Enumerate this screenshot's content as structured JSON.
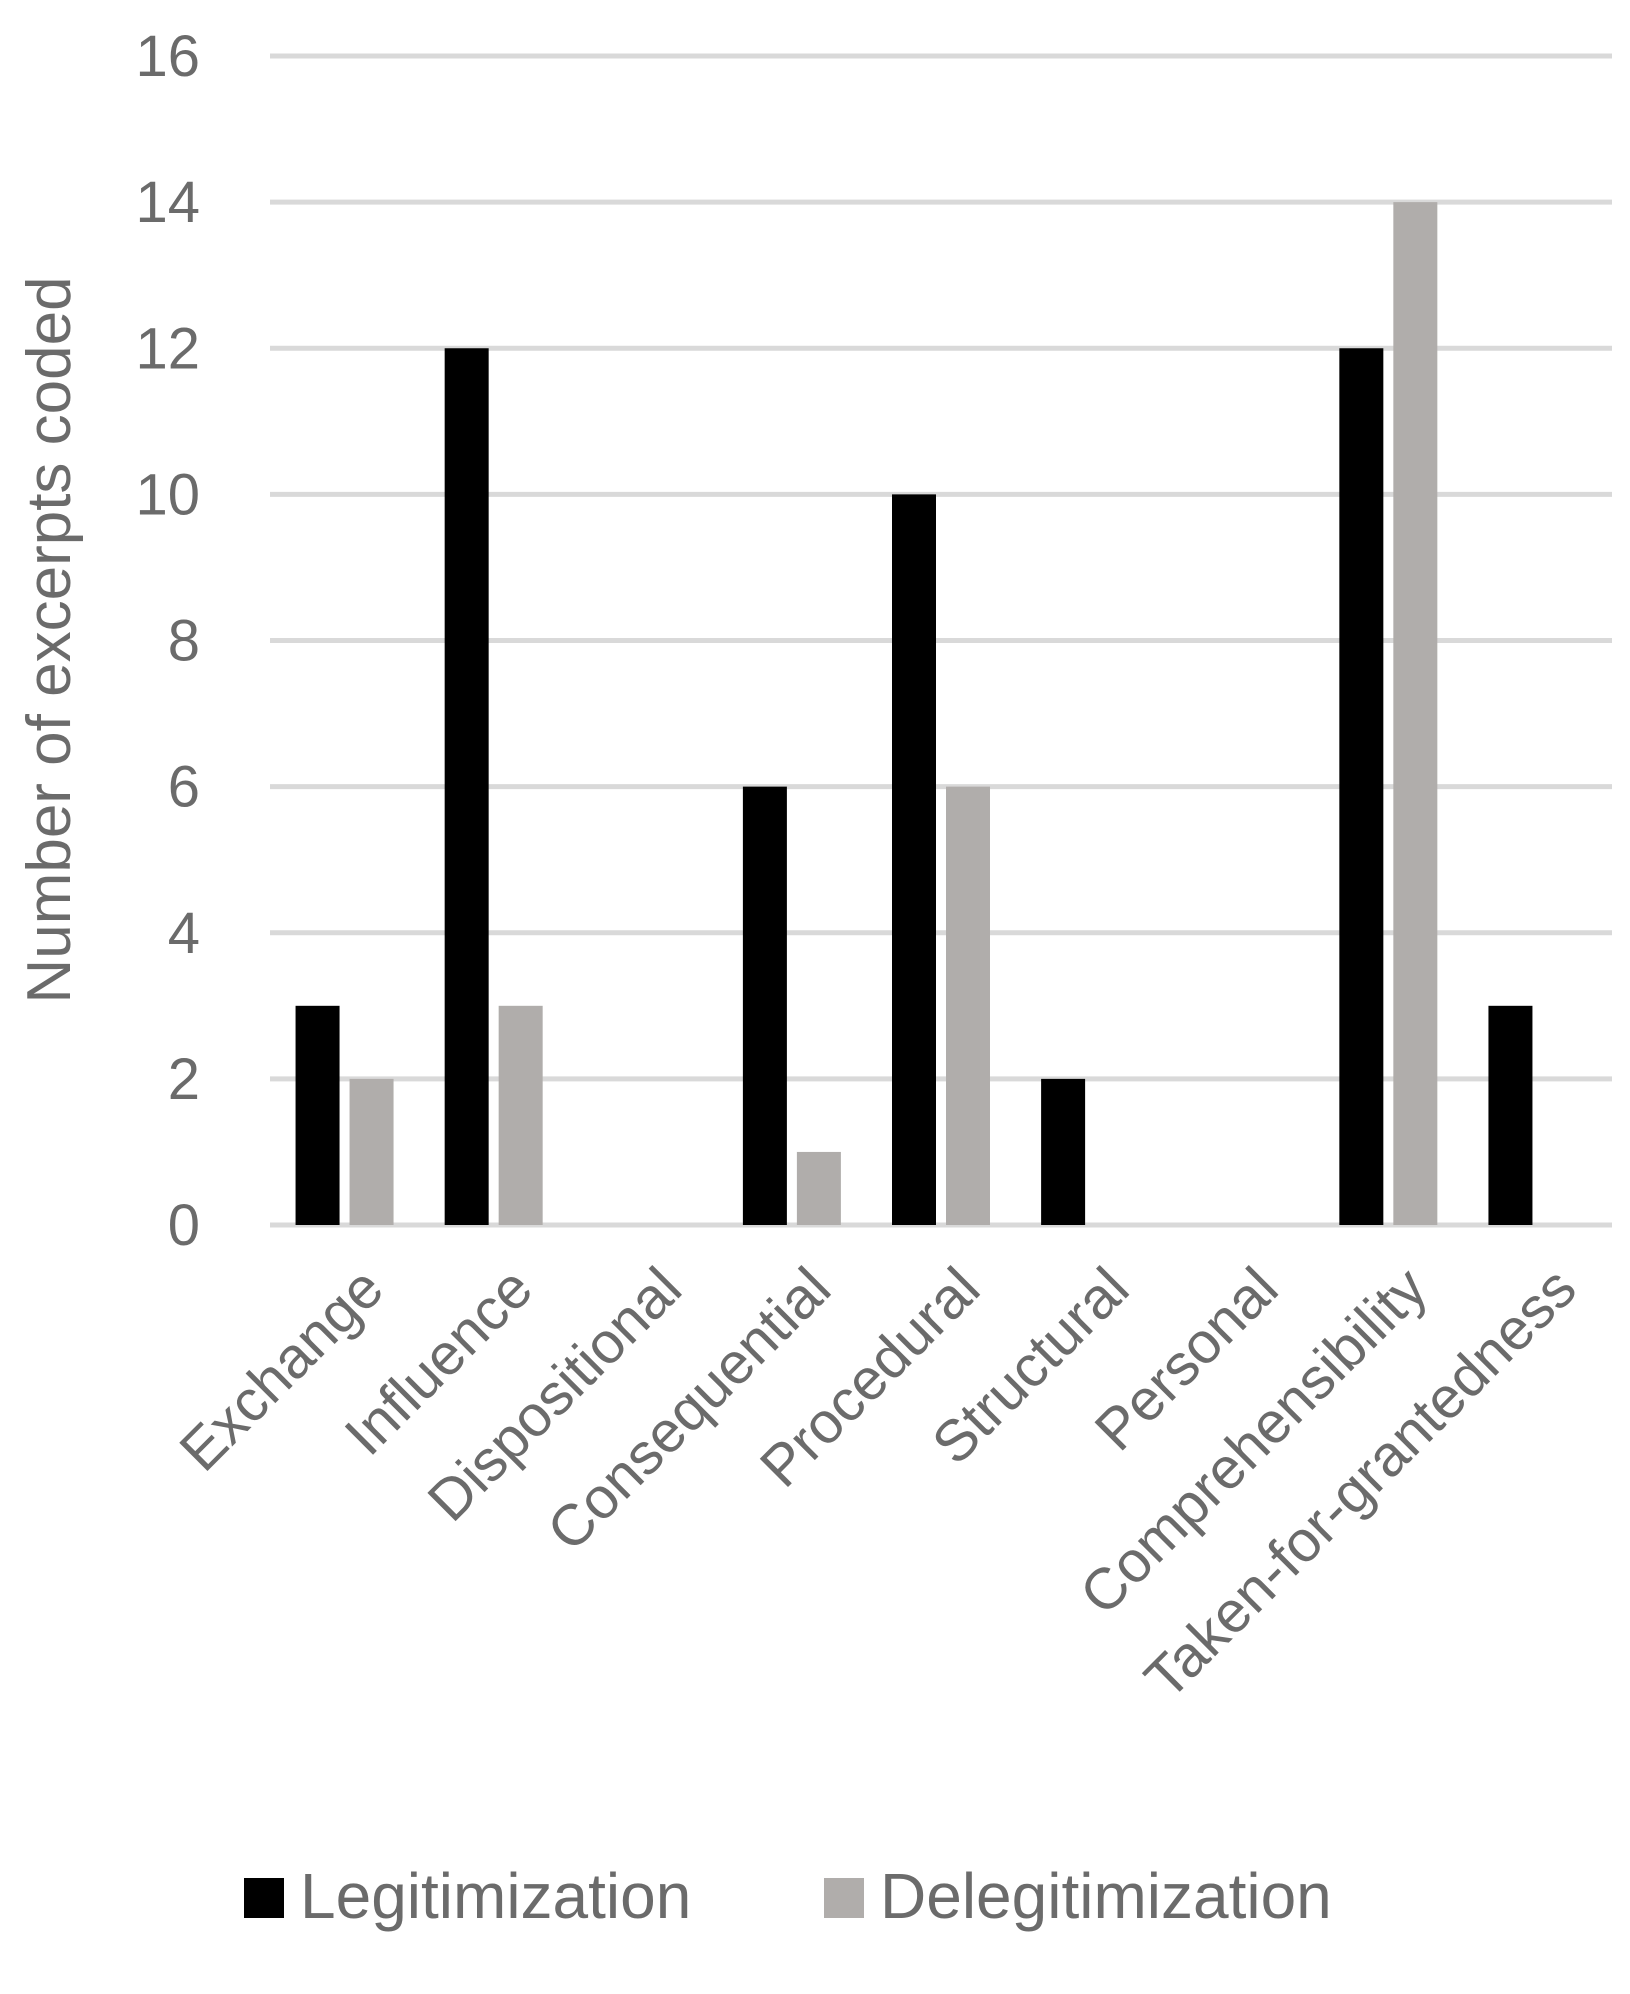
{
  "chart_data": {
    "type": "bar",
    "title": "",
    "xlabel": "",
    "ylabel": "Number of excerpts coded",
    "ylim": [
      0,
      16
    ],
    "yticks": [
      0,
      2,
      4,
      6,
      8,
      10,
      12,
      14,
      16
    ],
    "grid": true,
    "legend_position": "bottom",
    "categories": [
      "Exchange",
      "Influence",
      "Dispositional",
      "Consequential",
      "Procedural",
      "Structural",
      "Personal",
      "Comprehensibility",
      "Taken-for-grantedness"
    ],
    "series": [
      {
        "name": "Legitimization",
        "color": "#000000",
        "values": [
          3,
          12,
          0,
          6,
          10,
          2,
          0,
          12,
          3
        ]
      },
      {
        "name": "Delegitimization",
        "color": "#b0adab",
        "values": [
          2,
          3,
          0,
          1,
          6,
          0,
          0,
          14,
          0
        ]
      }
    ]
  },
  "colors": {
    "gridline": "#d9d9d9",
    "text": "#6b6b6b"
  }
}
